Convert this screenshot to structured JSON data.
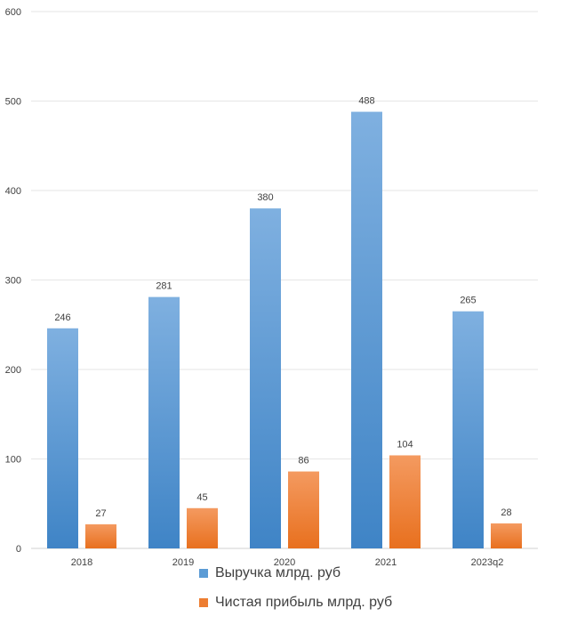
{
  "chart_data": {
    "type": "bar",
    "categories": [
      "2018",
      "2019",
      "2020",
      "2021",
      "2023q2"
    ],
    "series": [
      {
        "name": "Выручка млрд. руб",
        "values": [
          246,
          281,
          380,
          488,
          265
        ],
        "color": "#5B9BD5"
      },
      {
        "name": "Чистая прибыль млрд. руб",
        "values": [
          27,
          45,
          86,
          104,
          28
        ],
        "color": "#ED7D31"
      }
    ],
    "ylim": [
      0,
      600
    ],
    "yticks": [
      0,
      100,
      200,
      300,
      400,
      500,
      600
    ],
    "grid": true,
    "legend": "bottom",
    "data_labels": true
  }
}
